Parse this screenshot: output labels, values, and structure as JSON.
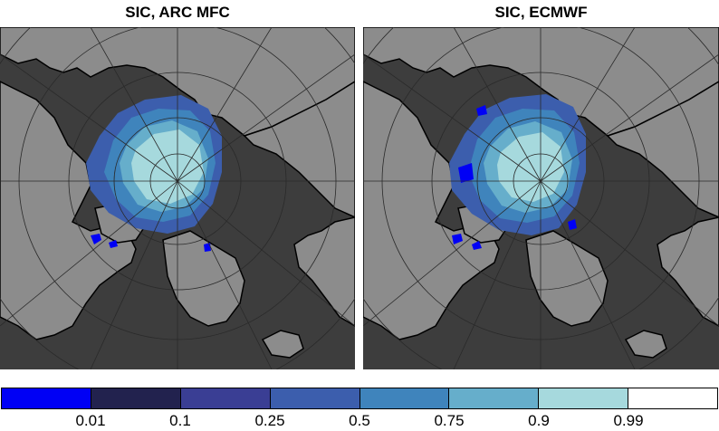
{
  "panels": [
    {
      "title": "SIC, ARC MFC",
      "product": "ARC MFC"
    },
    {
      "title": "SIC, ECMWF",
      "product": "ECMWF"
    }
  ],
  "colors": {
    "ocean_background": "#3d3d3d",
    "land": "#8c8c8c",
    "coastline": "#000000",
    "graticule": "#2a2a2a"
  },
  "colorbar": {
    "segments": [
      {
        "color": "#0000f5"
      },
      {
        "color": "#22224e"
      },
      {
        "color": "#3a3e94"
      },
      {
        "color": "#3c5ead"
      },
      {
        "color": "#3f84bc"
      },
      {
        "color": "#66aecb"
      },
      {
        "color": "#a6d9dd"
      },
      {
        "color": "#ffffff"
      }
    ],
    "tick_labels": [
      "0.01",
      "0.1",
      "0.25",
      "0.5",
      "0.75",
      "0.9",
      "0.99"
    ]
  }
}
